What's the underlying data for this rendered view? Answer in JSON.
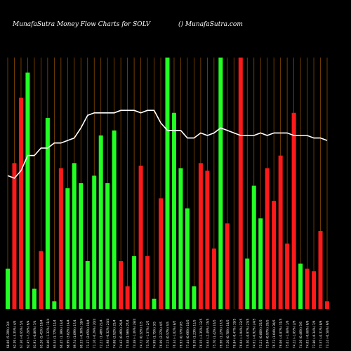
{
  "header": {
    "title": "MunafaSutra  Money Flow  Charts for SOLV",
    "site": "() MunafaSutra.com"
  },
  "colors": {
    "background": "#000000",
    "up": "#22ff22",
    "down": "#ff1a1a",
    "grid": "#8a4a00",
    "line": "#ffffff",
    "label": "#ffffff"
  },
  "chart_data": {
    "type": "bar",
    "title": "MunafaSutra  Money Flow  Charts for SOLV",
    "ylim": [
      0,
      100
    ],
    "grid": true,
    "categories": [
      "68.06 (5.29%) 3/4",
      "62.39 (-5.35%) 4/4",
      "67.36 (-0.65%) 5/4",
      "62.45 (-7.28%) 6/4",
      "61.91 (-0.86%) 7/4",
      "65.26 (5.41%) 10/4",
      "64.40 (-1.32%) 11/4",
      "65.54 (1.77%) 12/4",
      "66.45 (1.39%) 13/4",
      "68.99 (3.82%) 14/4",
      "69.74 (1.09%) 17/4",
      "69.53 (-0.30%) 18/4",
      "71.37 (2.65%) 19/4",
      "71.16 (-0.29%) 20/4",
      "72.21 (1.48%) 21/4",
      "71.98 (-0.32%) 24/4",
      "74.08 (2.92%) 25/4",
      "74.42 (0.46%) 26/4",
      "75.58 (1.56%) 27/4",
      "74.48 (-1.46%) 28/4",
      "74.72 (0.32%) 1/5",
      "73.70 (-1.37%) 2/5",
      "74.99 (1.75%) 3/5",
      "76.69 (2.27%) 4/5",
      "77.13 (0.57%) 5/5",
      "76.34 (-1.02%) 8/5",
      "76.93 (0.77%) 9/5",
      "77.44 (0.66%) 10/5",
      "78.39 (1.23%) 11/5",
      "76.55 (-2.35%) 12/5",
      "74.64 (-2.49%) 15/5",
      "75.70 (1.42%) 16/5",
      "76.66 (1.27%) 17/5",
      "77.20 (0.70%) 18/5",
      "76.84 (-0.47%) 19/5",
      "76.04 (-1.04%) 22/5",
      "75.30 (-0.97%) 23/5",
      "74.61 (-0.92%) 24/5",
      "75.21 (0.80%) 25/5",
      "75.94 (0.97%) 26/5",
      "76.73 (1.04%) 30/5",
      "76.06 (-0.87%) 31/5",
      "75.01 (-1.38%) 1/6",
      "74.22 (-1.05%) 2/6",
      "74.56 (0.46%) 5/6",
      "74.05 (-0.68%) 6/6",
      "73.80 (-0.34%) 7/6",
      "73.57 (-0.31%) 8/6",
      "73.14 (-0.58%) 9/6"
    ],
    "series": [
      {
        "colors": [
          "up",
          "down",
          "down",
          "up",
          "up",
          "down",
          "up",
          "up",
          "down",
          "up",
          "up",
          "up",
          "up",
          "up",
          "up",
          "up",
          "up",
          "down",
          "down",
          "up",
          "down",
          "down",
          "up",
          "down",
          "up",
          "up",
          "up",
          "up",
          "up",
          "down",
          "down",
          "down",
          "up",
          "down",
          "down",
          "down",
          "up",
          "up",
          "up",
          "down",
          "down",
          "down",
          "down",
          "down",
          "up",
          "down",
          "down",
          "down",
          "down"
        ],
        "values": [
          16,
          58,
          84,
          94,
          8,
          23,
          76,
          3,
          56,
          48,
          58,
          50,
          19,
          53,
          69,
          50,
          71,
          19,
          9,
          21,
          57,
          21,
          4,
          44,
          100,
          78,
          56,
          40,
          9,
          58,
          55,
          24,
          100,
          34,
          0,
          100,
          20,
          49,
          36,
          56,
          43,
          61,
          26,
          78,
          18,
          16,
          15,
          31,
          3
        ]
      },
      {
        "name": "",
        "type": "line",
        "values": [
          53,
          52,
          55,
          61,
          61,
          64,
          64,
          66,
          66,
          67,
          68,
          72,
          77,
          78,
          78,
          78,
          78,
          79,
          79,
          79,
          78,
          79,
          79,
          74,
          71,
          71,
          71,
          68,
          68,
          70,
          69,
          70,
          72,
          71,
          70,
          69,
          69,
          69,
          70,
          69,
          70,
          70,
          70,
          69,
          69,
          69,
          68,
          68,
          67
        ]
      }
    ]
  }
}
